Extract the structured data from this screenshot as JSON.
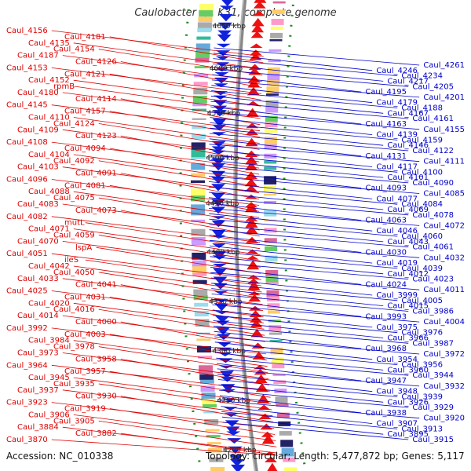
{
  "title": "Caulobacter sp. K31, complete genome",
  "footer": {
    "accession": "Accession: NC_010338",
    "topology": "Topology: circular; Length: 5,477,872 bp; Genes: 5,117"
  },
  "colors": {
    "left_label": "#dd0000",
    "right_label": "#0000cc",
    "forward_strand": "#ee1111",
    "reverse_strand": "#1122dd",
    "backbone": "#888888"
  },
  "scale_labels": [
    "4200 kbp",
    "4250 kbp",
    "4300 kbp",
    "4350 kbp",
    "4400 kbp",
    "4450 kbp",
    "4500 kbp",
    "4550 kbp",
    "4600 kbp",
    "4650 kbp"
  ],
  "left_genes": [
    "Caul_4156",
    "Caul_4181",
    "Caul_4135",
    "Caul_4154",
    "Caul_4187",
    "Caul_4126",
    "Caul_4153",
    "Caul_4121",
    "Caul_4152",
    "rpmB",
    "Caul_4180",
    "Caul_4114",
    "Caul_4145",
    "Caul_4157",
    "Caul_4110",
    "Caul_4124",
    "Caul_4109",
    "Caul_4123",
    "Caul_4108",
    "Caul_4094",
    "Caul_4104",
    "Caul_4092",
    "Caul_4103",
    "Caul_4091",
    "Caul_4096",
    "Caul_4081",
    "Caul_4088",
    "Caul_4075",
    "Caul_4083",
    "Caul_4073",
    "Caul_4082",
    "mutL",
    "Caul_4071",
    "Caul_4059",
    "Caul_4070",
    "lspA",
    "Caul_4051",
    "ileS",
    "Caul_4042",
    "Caul_4050",
    "Caul_4033",
    "Caul_4041",
    "Caul_4025",
    "Caul_4031",
    "Caul_4020",
    "Caul_4016",
    "Caul_4014",
    "Caul_4000",
    "Caul_3992",
    "Caul_4003",
    "Caul_3984",
    "Caul_3978",
    "Caul_3973",
    "Caul_3958",
    "Caul_3964",
    "Caul_3957",
    "Caul_3945",
    "Caul_3935",
    "Caul_3937",
    "Caul_3930",
    "Caul_3923",
    "Caul_3919",
    "Caul_3906",
    "Caul_3905",
    "Caul_3884",
    "Caul_3882",
    "Caul_3870"
  ],
  "right_genes": [
    "Caul_4261",
    "Caul_4246",
    "Caul_4234",
    "Caul_4217",
    "Caul_4205",
    "Caul_4195",
    "Caul_4201",
    "Caul_4179",
    "Caul_4188",
    "Caul_4167",
    "Caul_4161",
    "Caul_4163",
    "Caul_4155",
    "Caul_4139",
    "Caul_4159",
    "Caul_4146",
    "Caul_4122",
    "Caul_4131",
    "Caul_4111",
    "Caul_4117",
    "Caul_4100",
    "Caul_4101",
    "Caul_4090",
    "Caul_4093",
    "Caul_4085",
    "Caul_4077",
    "Caul_4084",
    "Caul_4069",
    "Caul_4078",
    "Caul_4063",
    "Caul_4072",
    "Caul_4046",
    "Caul_4060",
    "Caul_4043",
    "Caul_4061",
    "Caul_4030",
    "Caul_4032",
    "Caul_4019",
    "Caul_4039",
    "Caul_4012",
    "Caul_4023",
    "Caul_4024",
    "Caul_4011",
    "Caul_3999",
    "Caul_4005",
    "Caul_4015",
    "Caul_3986",
    "Caul_3993",
    "Caul_4004",
    "Caul_3975",
    "Caul_3976",
    "Caul_3966",
    "Caul_3987",
    "Caul_3968",
    "Caul_3972",
    "Caul_3954",
    "Caul_3956",
    "Caul_3960",
    "Caul_3944",
    "Caul_3947",
    "Caul_3932",
    "Caul_3948",
    "Caul_3939",
    "Caul_3926",
    "Caul_3929",
    "Caul_3938",
    "Caul_3920",
    "Caul_3907",
    "Caul_3913",
    "Caul_3895",
    "Caul_3915"
  ]
}
